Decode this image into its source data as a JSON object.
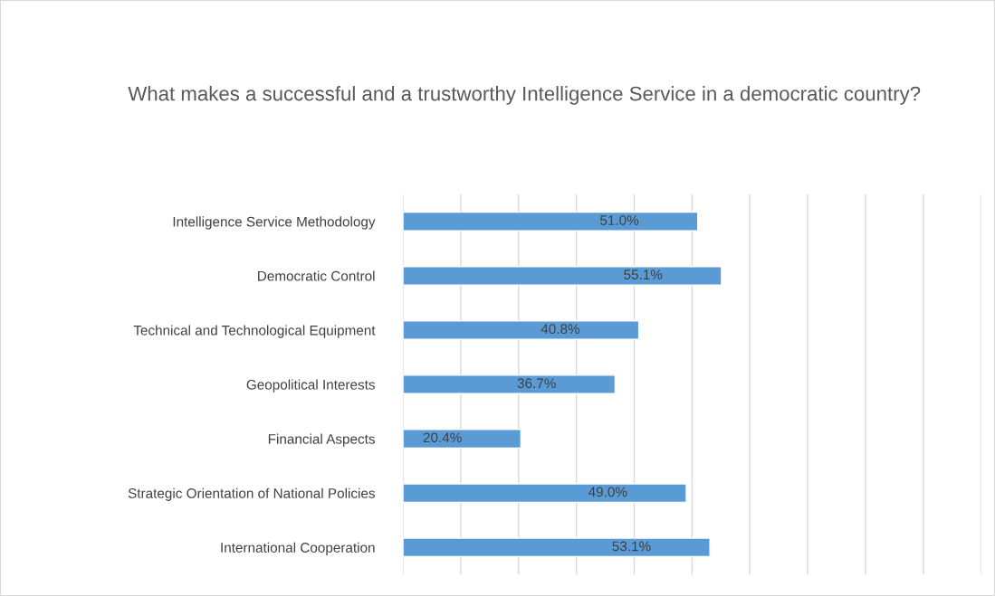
{
  "chart_data": {
    "type": "bar",
    "orientation": "horizontal",
    "title": "What makes a successful and a trustworthy Intelligence Service in a democratic country?",
    "categories": [
      "Intelligence Service Methodology",
      "Democratic Control",
      "Technical and Technological Equipment",
      "Geopolitical Interests",
      "Financial Aspects",
      "Strategic Orientation of National Policies",
      "International Cooperation"
    ],
    "values": [
      51.0,
      55.1,
      40.8,
      36.7,
      20.4,
      49.0,
      53.1
    ],
    "value_labels": [
      "51.0%",
      "55.1%",
      "40.8%",
      "36.7%",
      "20.4%",
      "49.0%",
      "53.1%"
    ],
    "color": "#5b9bd5",
    "xlim": [
      0,
      100
    ],
    "xticks": [
      {
        "value": 0,
        "label": null
      },
      {
        "value": 10,
        "label": null
      },
      {
        "value": 20,
        "label": null
      },
      {
        "value": 30,
        "label": null
      },
      {
        "value": 40,
        "label": null
      },
      {
        "value": 50,
        "label": null
      },
      {
        "value": 60,
        "label": null
      },
      {
        "value": 70,
        "label": null
      },
      {
        "value": 80,
        "label": null
      },
      {
        "value": 90,
        "label": null
      },
      {
        "value": 100,
        "label": null
      }
    ],
    "grid": "x"
  }
}
